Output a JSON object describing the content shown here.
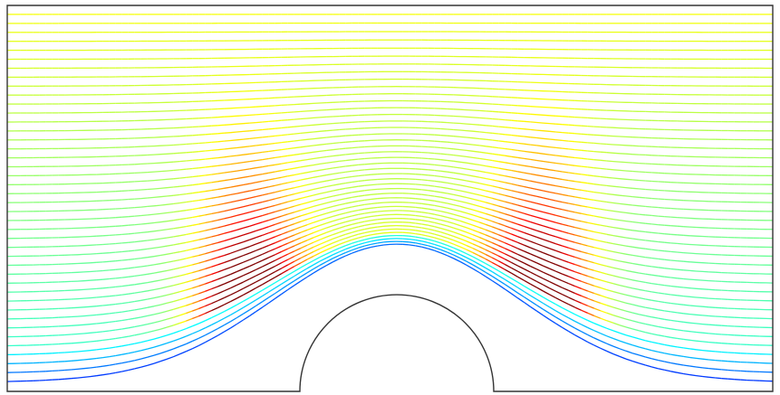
{
  "figure": {
    "kind": "streamline plot",
    "description_note": "",
    "background_color": "#ffffff",
    "boundary_color": "#000000",
    "obstacle": "semicircle",
    "streamline_count": 42,
    "color_scale": "jet",
    "colors": {
      "dark_blue": "#0000cc",
      "blue": "#2060ff",
      "cyan": "#00d8d8",
      "green": "#20d020",
      "yellow": "#f0f000",
      "orange": "#ff9000",
      "red": "#e00000"
    }
  }
}
